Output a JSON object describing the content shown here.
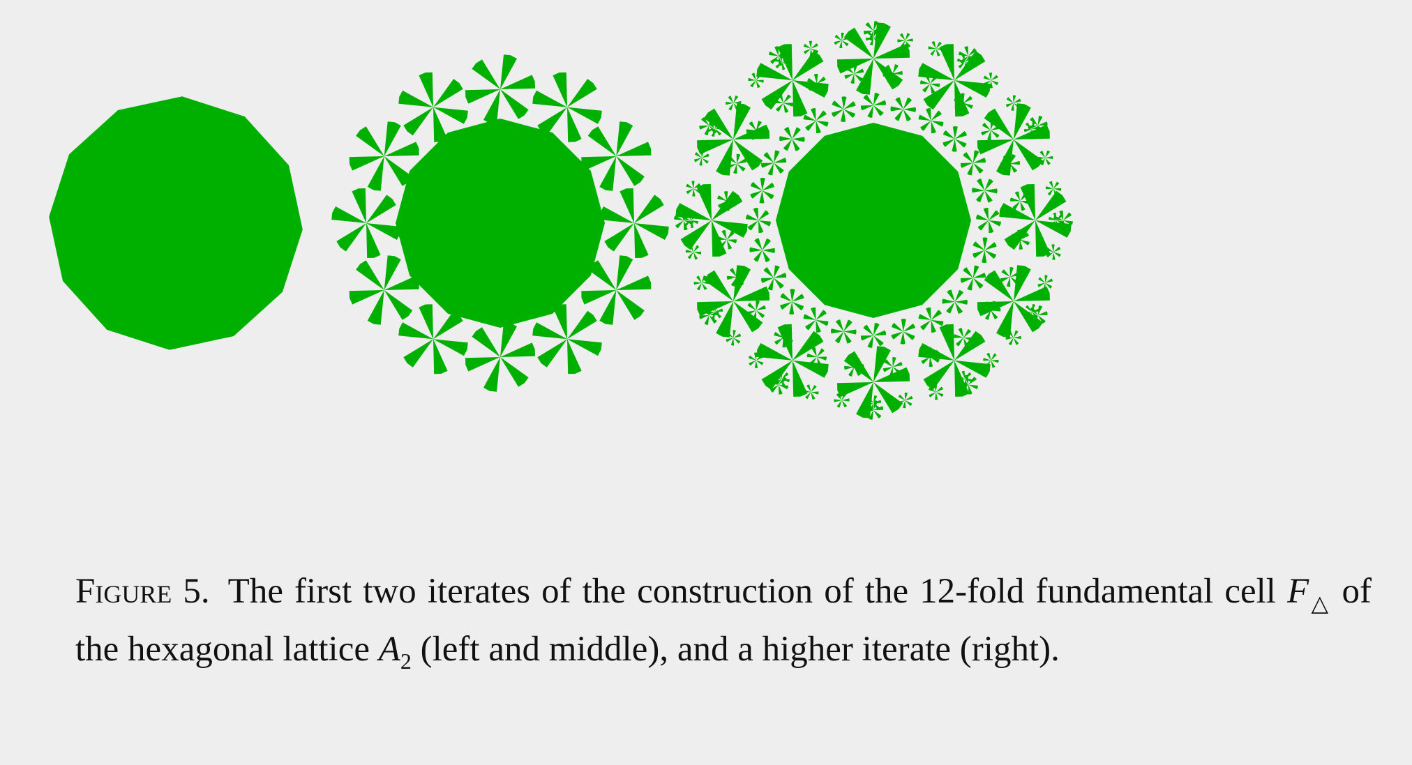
{
  "figure": {
    "color": "#00b000",
    "panels": [
      {
        "name": "left-iterate",
        "depth": 0,
        "fold": 12
      },
      {
        "name": "middle-iterate",
        "depth": 1,
        "fold": 12
      },
      {
        "name": "right-iterate",
        "depth": 3,
        "fold": 12
      }
    ]
  },
  "caption": {
    "label": "Figure 5.",
    "text_a": "The first two iterates of the construction of the 12-fold fundamental cell ",
    "var_f": "F",
    "sub_f": "△",
    "text_b": " of the hexagonal lattice ",
    "var_a": "A",
    "sub_a": "2",
    "text_c": " (left and middle), and a higher iterate (right)."
  }
}
